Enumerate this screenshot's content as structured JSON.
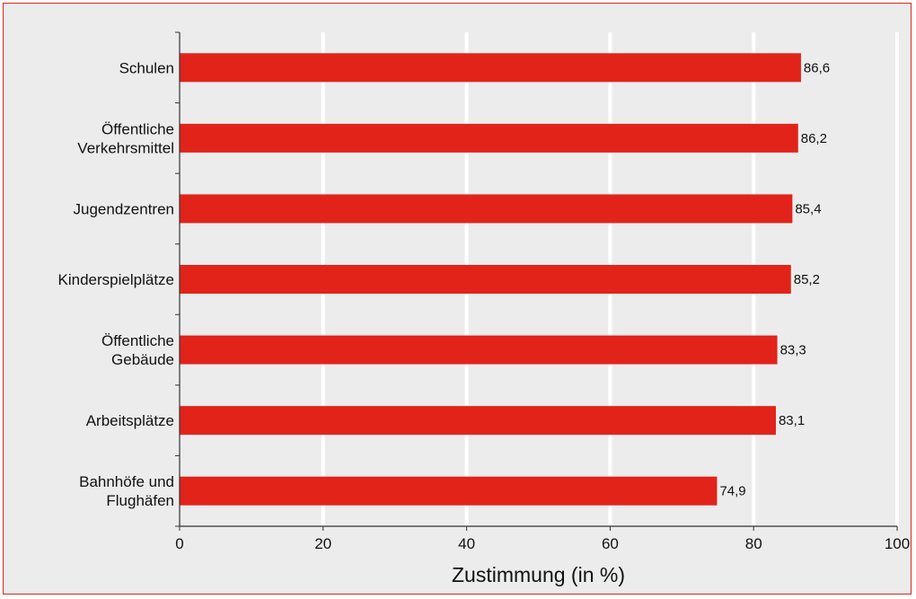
{
  "chart_data": {
    "type": "bar",
    "orientation": "horizontal",
    "categories": [
      [
        "Schulen"
      ],
      [
        "Öffentliche",
        "Verkehrsmittel"
      ],
      [
        "Jugendzentren"
      ],
      [
        "Kinderspielplätze"
      ],
      [
        "Öffentliche",
        "Gebäude"
      ],
      [
        "Arbeitsplätze"
      ],
      [
        "Bahnhöfe und",
        "Flughäfen"
      ]
    ],
    "values": [
      86.6,
      86.2,
      85.4,
      85.2,
      83.3,
      83.1,
      74.9
    ],
    "value_labels": [
      "86,6",
      "86,2",
      "85,4",
      "85,2",
      "83,3",
      "83,1",
      "74,9"
    ],
    "xlabel": "Zustimmung (in %)",
    "xlim": [
      0,
      100
    ],
    "xticks": [
      0,
      20,
      40,
      60,
      80,
      100
    ],
    "grid": "vertical",
    "colors": {
      "bar": "#e2231a",
      "background": "#ececec",
      "border": "#e2231a",
      "grid": "#ffffff"
    }
  }
}
